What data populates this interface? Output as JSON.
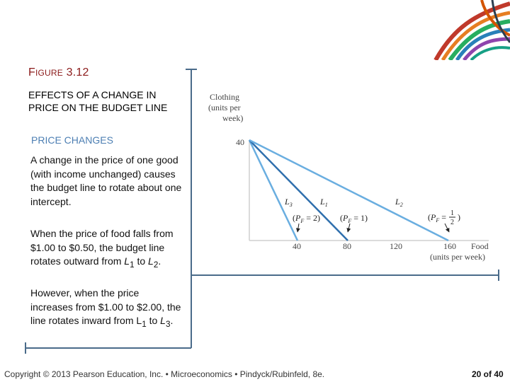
{
  "slide": {
    "title_prefix_big": "F",
    "title_prefix_small": "IGURE",
    "title_number": "3.12",
    "subtitle": "EFFECTS OF A CHANGE IN PRICE ON THE BUDGET LINE",
    "section": "PRICE CHANGES",
    "para1": "A change in the price of one good (with income unchanged) causes the budget line to rotate about one intercept.",
    "para2": {
      "pre": "When the price of food falls from $1.00 to $0.50, the budget line rotates outward from ",
      "from_letter": "L",
      "from_sub": "1",
      "mid": " to ",
      "to_letter": "L",
      "to_sub": "2",
      "post": "."
    },
    "para3": {
      "pre": "However, when the price increases from $1.00 to $2.00, the line rotates inward from ",
      "from_letter": "L",
      "from_sub": "1",
      "mid": " to ",
      "to_letter": "L",
      "to_sub": "3",
      "post": "."
    }
  },
  "diagram": {
    "y_axis_label_line1": "Clothing",
    "y_axis_label_line2": "(units per",
    "y_axis_label_line3": "week)",
    "y_intercept_label": "40",
    "x_axis_label_line1": "Food",
    "x_axis_label_line2": "(units per week)",
    "x_ticks": [
      "40",
      "80",
      "120",
      "160"
    ],
    "line_labels": {
      "l3": "L3",
      "l1": "L1",
      "l2": "L2"
    },
    "price_annotations": {
      "l3": "(PF = 2)",
      "l1": "(PF = 1)",
      "l2_pre": "(PF =",
      "l2_num": "1",
      "l2_den": "2",
      "l2_post": ")"
    },
    "colors": {
      "budget_line": "#6aaee0",
      "budget_line_l1": "#2f6fad",
      "axis": "#cfcfcf",
      "frame": "#4a6b8a"
    }
  },
  "footer": {
    "copyright": "Copyright © 2013 Pearson Education, Inc. • Microeconomics • Pindyck/Rubinfeld, 8e.",
    "page": "20 of 40"
  }
}
